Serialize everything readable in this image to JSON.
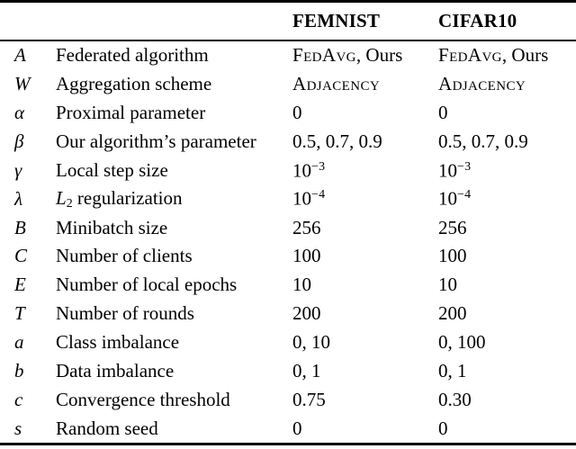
{
  "page": {
    "background": "#ffffff",
    "text_color": "#000000"
  },
  "table": {
    "header": {
      "femnist": "FEMNIST",
      "cifar10": "CIFAR10"
    },
    "rows": [
      {
        "symbol": [
          {
            "t": "A",
            "s": "cal"
          }
        ],
        "label": [
          {
            "t": "Federated algorithm",
            "s": ""
          }
        ],
        "femnist": [
          {
            "t": "FedAvg",
            "s": "sc"
          },
          {
            "t": ", Ours",
            "s": ""
          }
        ],
        "cifar10": [
          {
            "t": "FedAvg",
            "s": "sc"
          },
          {
            "t": ", Ours",
            "s": ""
          }
        ]
      },
      {
        "symbol": [
          {
            "t": "W",
            "s": "cal"
          }
        ],
        "label": [
          {
            "t": "Aggregation scheme",
            "s": ""
          }
        ],
        "femnist": [
          {
            "t": "Adjacency",
            "s": "sc"
          }
        ],
        "cifar10": [
          {
            "t": "Adjacency",
            "s": "sc"
          }
        ]
      },
      {
        "symbol": [
          {
            "t": "α",
            "s": ""
          }
        ],
        "label": [
          {
            "t": "Proximal parameter",
            "s": ""
          }
        ],
        "femnist": [
          {
            "t": "0",
            "s": ""
          }
        ],
        "cifar10": [
          {
            "t": "0",
            "s": ""
          }
        ]
      },
      {
        "symbol": [
          {
            "t": "β",
            "s": ""
          }
        ],
        "label": [
          {
            "t": "Our algorithm’s parameter",
            "s": ""
          }
        ],
        "femnist": [
          {
            "t": "0.5, 0.7, 0.9",
            "s": ""
          }
        ],
        "cifar10": [
          {
            "t": "0.5, 0.7, 0.9",
            "s": ""
          }
        ]
      },
      {
        "symbol": [
          {
            "t": "γ",
            "s": ""
          }
        ],
        "label": [
          {
            "t": "Local step size",
            "s": ""
          }
        ],
        "femnist": [
          {
            "t": "10",
            "s": ""
          },
          {
            "t": "−3",
            "s": "sup"
          }
        ],
        "cifar10": [
          {
            "t": "10",
            "s": ""
          },
          {
            "t": "−3",
            "s": "sup"
          }
        ]
      },
      {
        "symbol": [
          {
            "t": "λ",
            "s": ""
          }
        ],
        "label": [
          {
            "t": "L",
            "s": "it"
          },
          {
            "t": "2",
            "s": "sub"
          },
          {
            "t": " regularization",
            "s": ""
          }
        ],
        "femnist": [
          {
            "t": "10",
            "s": ""
          },
          {
            "t": "−4",
            "s": "sup"
          }
        ],
        "cifar10": [
          {
            "t": "10",
            "s": ""
          },
          {
            "t": "−4",
            "s": "sup"
          }
        ]
      },
      {
        "symbol": [
          {
            "t": "B",
            "s": ""
          }
        ],
        "label": [
          {
            "t": "Minibatch size",
            "s": ""
          }
        ],
        "femnist": [
          {
            "t": "256",
            "s": ""
          }
        ],
        "cifar10": [
          {
            "t": "256",
            "s": ""
          }
        ]
      },
      {
        "symbol": [
          {
            "t": "C",
            "s": ""
          }
        ],
        "label": [
          {
            "t": "Number of clients",
            "s": ""
          }
        ],
        "femnist": [
          {
            "t": "100",
            "s": ""
          }
        ],
        "cifar10": [
          {
            "t": "100",
            "s": ""
          }
        ]
      },
      {
        "symbol": [
          {
            "t": "E",
            "s": ""
          }
        ],
        "label": [
          {
            "t": "Number of local epochs",
            "s": ""
          }
        ],
        "femnist": [
          {
            "t": "10",
            "s": ""
          }
        ],
        "cifar10": [
          {
            "t": "10",
            "s": ""
          }
        ]
      },
      {
        "symbol": [
          {
            "t": "T",
            "s": ""
          }
        ],
        "label": [
          {
            "t": "Number of rounds",
            "s": ""
          }
        ],
        "femnist": [
          {
            "t": "200",
            "s": ""
          }
        ],
        "cifar10": [
          {
            "t": "200",
            "s": ""
          }
        ]
      },
      {
        "symbol": [
          {
            "t": "a",
            "s": ""
          }
        ],
        "label": [
          {
            "t": "Class imbalance",
            "s": ""
          }
        ],
        "femnist": [
          {
            "t": "0, 10",
            "s": ""
          }
        ],
        "cifar10": [
          {
            "t": "0, 100",
            "s": ""
          }
        ]
      },
      {
        "symbol": [
          {
            "t": "b",
            "s": ""
          }
        ],
        "label": [
          {
            "t": "Data imbalance",
            "s": ""
          }
        ],
        "femnist": [
          {
            "t": "0, 1",
            "s": ""
          }
        ],
        "cifar10": [
          {
            "t": "0, 1",
            "s": ""
          }
        ]
      },
      {
        "symbol": [
          {
            "t": "c",
            "s": ""
          }
        ],
        "label": [
          {
            "t": "Convergence threshold",
            "s": ""
          }
        ],
        "femnist": [
          {
            "t": "0.75",
            "s": ""
          }
        ],
        "cifar10": [
          {
            "t": "0.30",
            "s": ""
          }
        ]
      },
      {
        "symbol": [
          {
            "t": "s",
            "s": ""
          }
        ],
        "label": [
          {
            "t": "Random seed",
            "s": ""
          }
        ],
        "femnist": [
          {
            "t": "0",
            "s": ""
          }
        ],
        "cifar10": [
          {
            "t": "0",
            "s": ""
          }
        ]
      }
    ]
  }
}
